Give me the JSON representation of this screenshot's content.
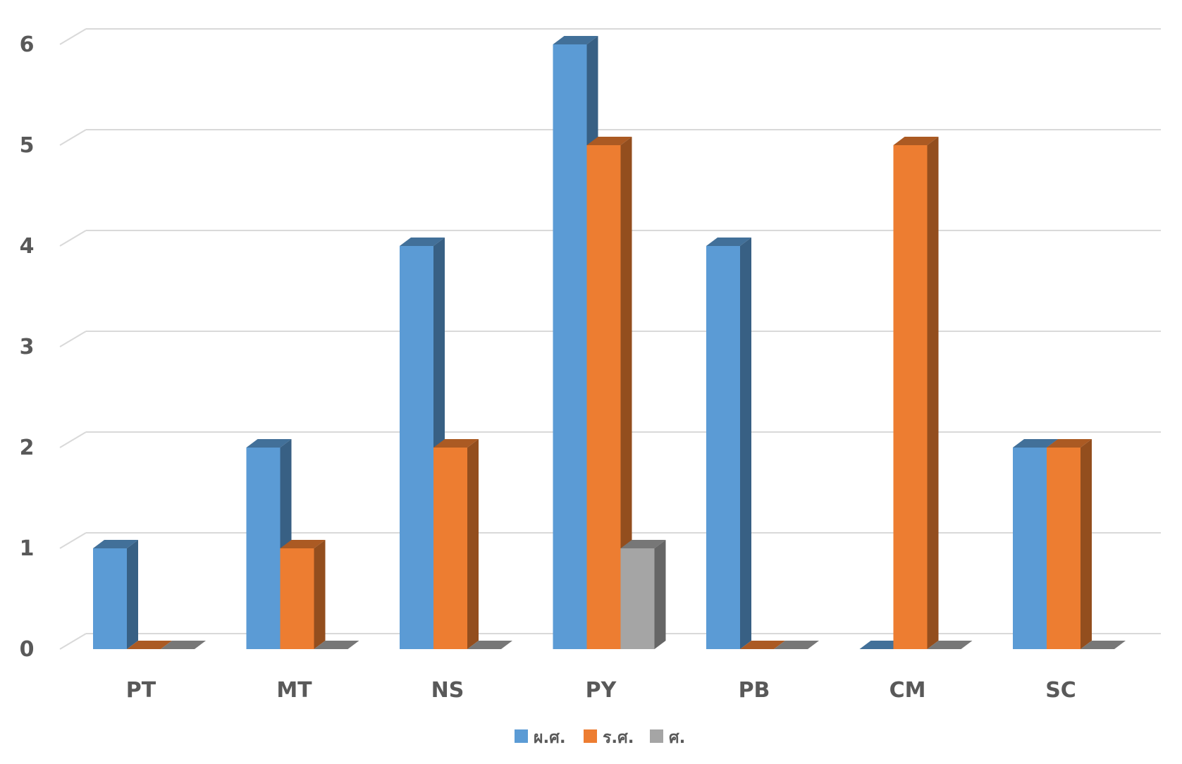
{
  "chart_data": {
    "type": "bar",
    "style": "3d-clustered-column",
    "categories": [
      "PT",
      "MT",
      "NS",
      "PY",
      "PB",
      "CM",
      "SC"
    ],
    "series": [
      {
        "name": "ผ.ศ.",
        "color": "#5B9BD5",
        "values": [
          1,
          2,
          4,
          6,
          4,
          0,
          2
        ]
      },
      {
        "name": "ร.ศ.",
        "color": "#ED7D31",
        "values": [
          0,
          1,
          2,
          5,
          0,
          5,
          2
        ]
      },
      {
        "name": "ศ.",
        "color": "#A5A5A5",
        "values": [
          0,
          0,
          0,
          1,
          0,
          0,
          0
        ]
      }
    ],
    "y_ticks": [
      "0",
      "1",
      "2",
      "3",
      "4",
      "5",
      "6"
    ],
    "ylim": [
      0,
      6
    ],
    "grid": true,
    "legend": "bottom-center"
  }
}
